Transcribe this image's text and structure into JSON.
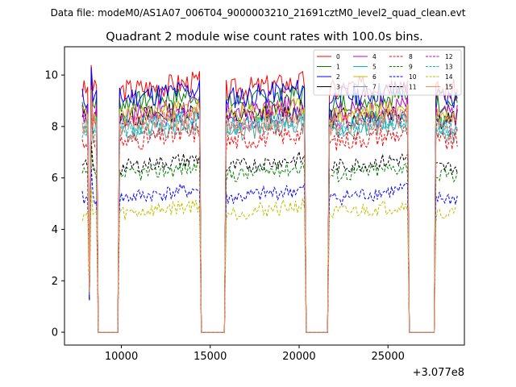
{
  "suptitle": "Data file: modeM0/AS1A07_006T04_9000003210_21691cztM0_level2_quad_clean.evt",
  "chart_data": {
    "type": "line",
    "title": "Quadrant 2 module wise count rates with 100.0s bins.",
    "xlabel": "",
    "ylabel": "",
    "offset_label": "+3.077e8",
    "xlim": [
      6800,
      29300
    ],
    "ylim": [
      -0.5,
      11.1
    ],
    "xticks": [
      10000,
      15000,
      20000,
      25000
    ],
    "yticks": [
      0,
      2,
      4,
      6,
      8,
      10
    ],
    "grid": false,
    "legend_position": "upper-right",
    "segments": [
      [
        7800,
        8600
      ],
      [
        9900,
        14400
      ],
      [
        15900,
        20300
      ],
      [
        21700,
        26100
      ],
      [
        27700,
        28900
      ]
    ],
    "series": [
      {
        "name": "0",
        "color": "#ff0000",
        "dash": "solid",
        "level": 9.4,
        "noise": 0.45,
        "seed": 3
      },
      {
        "name": "1",
        "color": "#008000",
        "dash": "solid",
        "level": 8.9,
        "noise": 0.4,
        "seed": 7
      },
      {
        "name": "2",
        "color": "#0000ff",
        "dash": "solid",
        "level": 9.1,
        "noise": 0.45,
        "seed": 11
      },
      {
        "name": "3",
        "color": "#000000",
        "dash": "solid",
        "level": 8.3,
        "noise": 0.4,
        "seed": 13
      },
      {
        "name": "4",
        "color": "#c000c0",
        "dash": "solid",
        "level": 8.5,
        "noise": 0.4,
        "seed": 17
      },
      {
        "name": "5",
        "color": "#00bfbf",
        "dash": "solid",
        "level": 8.0,
        "noise": 0.4,
        "seed": 19
      },
      {
        "name": "6",
        "color": "#bfbf00",
        "dash": "solid",
        "level": 8.4,
        "noise": 0.4,
        "seed": 23
      },
      {
        "name": "7",
        "color": "#5f9ea0",
        "dash": "solid",
        "level": 7.7,
        "noise": 0.35,
        "seed": 29
      },
      {
        "name": "8",
        "color": "#ff0000",
        "dash": "dashed",
        "level": 7.4,
        "noise": 0.4,
        "seed": 31
      },
      {
        "name": "9",
        "color": "#008000",
        "dash": "dashed",
        "level": 6.1,
        "noise": 0.3,
        "seed": 37
      },
      {
        "name": "10",
        "color": "#0000ff",
        "dash": "dashed",
        "level": 5.2,
        "noise": 0.3,
        "seed": 41
      },
      {
        "name": "11",
        "color": "#000000",
        "dash": "dashed",
        "level": 6.4,
        "noise": 0.3,
        "seed": 43
      },
      {
        "name": "12",
        "color": "#c000c0",
        "dash": "dashed",
        "level": 8.1,
        "noise": 0.35,
        "seed": 47
      },
      {
        "name": "13",
        "color": "#00bfbf",
        "dash": "dashed",
        "level": 7.9,
        "noise": 0.35,
        "seed": 53
      },
      {
        "name": "14",
        "color": "#bfbf00",
        "dash": "dashed",
        "level": 4.6,
        "noise": 0.3,
        "seed": 59
      },
      {
        "name": "15",
        "color": "#ff8c69",
        "dash": "solid",
        "level": 8.0,
        "noise": 0.4,
        "seed": 61
      }
    ]
  }
}
